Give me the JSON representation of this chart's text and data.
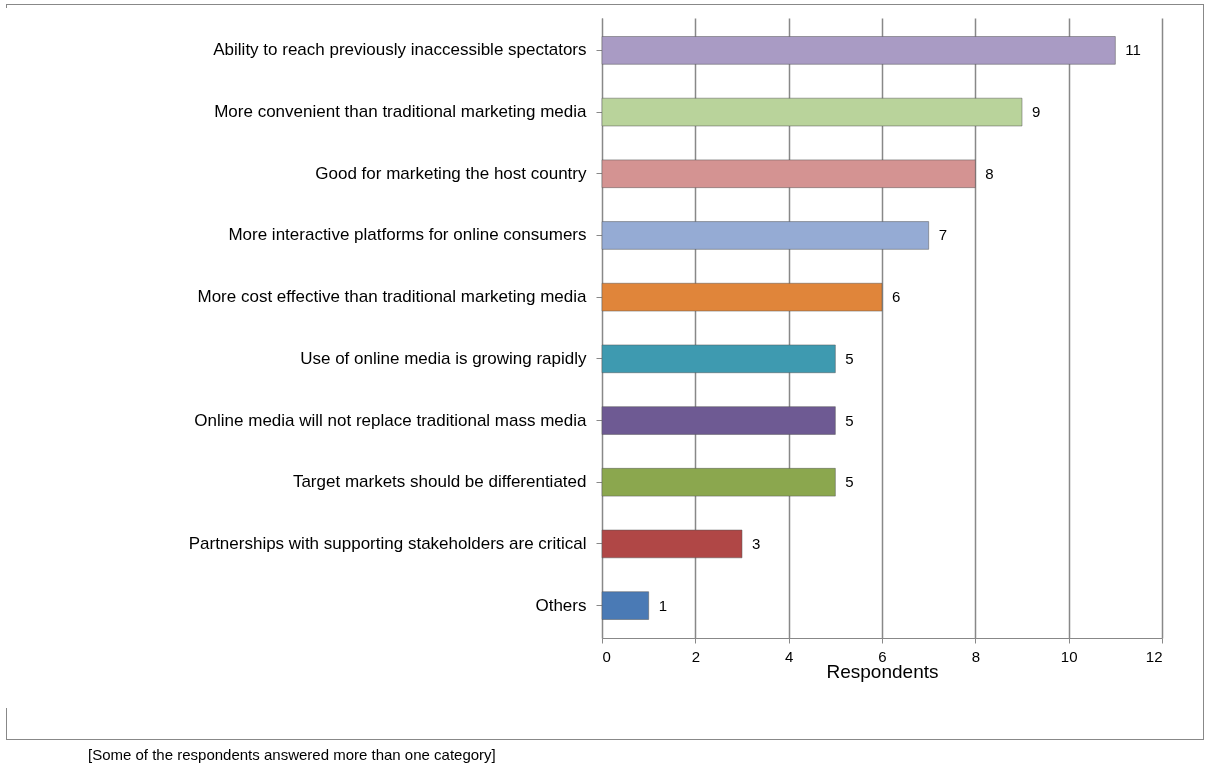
{
  "chart_data": {
    "type": "bar",
    "orientation": "horizontal",
    "categories": [
      "Ability to reach previously inaccessible spectators",
      "More convenient than traditional marketing media",
      "Good for marketing the host country",
      "More interactive platforms for online consumers",
      "More cost effective than traditional marketing media",
      "Use of online media is growing rapidly",
      "Online media will not replace traditional mass media",
      "Target markets should be differentiated",
      "Partnerships with supporting stakeholders are critical",
      "Others"
    ],
    "values": [
      11,
      9,
      8,
      7,
      6,
      5,
      5,
      5,
      3,
      1
    ],
    "colors": [
      "#a99bc4",
      "#b9d39b",
      "#d49392",
      "#95abd4",
      "#e0853a",
      "#3e9ab0",
      "#6e5a93",
      "#8ba74e",
      "#b04746",
      "#4a7ab5"
    ],
    "xlabel": "Respondents",
    "xlim": [
      0,
      12
    ],
    "xticks": [
      0,
      2,
      4,
      6,
      8,
      10,
      12
    ],
    "grid": "x",
    "data_labels": true,
    "annotations": [
      "[Some of the respondents answered more than one category]"
    ]
  }
}
